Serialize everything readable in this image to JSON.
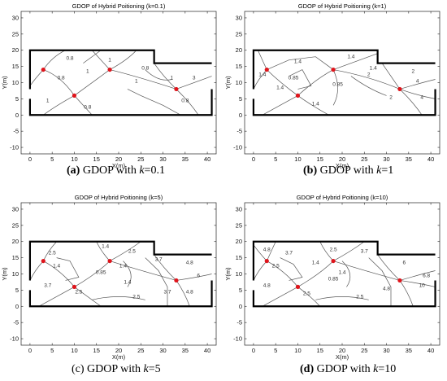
{
  "chart_data": [
    {
      "type": "contour",
      "title": "GDOP of Hybrid Poitioning (k=0.1)",
      "xlabel": "X(m)",
      "ylabel": "Y(m)",
      "xlim": [
        -2,
        42
      ],
      "ylim": [
        -12,
        32
      ],
      "xticks": [
        0,
        5,
        10,
        15,
        20,
        25,
        30,
        35,
        40
      ],
      "yticks": [
        -10,
        -5,
        0,
        5,
        10,
        15,
        20,
        25,
        30
      ],
      "room_outline": [
        [
          0,
          8
        ],
        [
          0,
          20
        ],
        [
          28,
          20
        ],
        [
          28,
          16
        ],
        [
          41,
          16
        ]
      ],
      "room_outline_2": [
        [
          41,
          8
        ],
        [
          41,
          0
        ],
        [
          0,
          0
        ],
        [
          0,
          5
        ]
      ],
      "anchors": [
        [
          3,
          14
        ],
        [
          10,
          6
        ],
        [
          18,
          14
        ],
        [
          33,
          8
        ]
      ],
      "contour_labels": [
        {
          "x": 9,
          "y": 17,
          "text": "0.8"
        },
        {
          "x": 26,
          "y": 14,
          "text": "0.8"
        },
        {
          "x": 7,
          "y": 11,
          "text": "0.8"
        },
        {
          "x": 13,
          "y": 2,
          "text": "0.8"
        },
        {
          "x": 35,
          "y": 4,
          "text": "0.8"
        },
        {
          "x": 13,
          "y": 13,
          "text": "1"
        },
        {
          "x": 18,
          "y": 16.5,
          "text": "1"
        },
        {
          "x": 4,
          "y": 4,
          "text": "1"
        },
        {
          "x": 32,
          "y": 11,
          "text": "1"
        },
        {
          "x": 24,
          "y": 10,
          "text": "1"
        },
        {
          "x": 37,
          "y": 11,
          "text": "3"
        }
      ],
      "caption_letter": "(a)",
      "caption_text": " GDOP with ",
      "caption_k": "k",
      "caption_value": "=0.1"
    },
    {
      "type": "contour",
      "title": "GDOP of Hybrid Poitioning (k=1)",
      "xlabel": "X(m)",
      "ylabel": "Y(m)",
      "xlim": [
        -2,
        42
      ],
      "ylim": [
        -12,
        32
      ],
      "xticks": [
        0,
        5,
        10,
        15,
        20,
        25,
        30,
        35,
        40
      ],
      "yticks": [
        -10,
        -5,
        0,
        5,
        10,
        15,
        20,
        25,
        30
      ],
      "room_outline": [
        [
          0,
          8
        ],
        [
          0,
          20
        ],
        [
          28,
          20
        ],
        [
          28,
          16
        ],
        [
          41,
          16
        ]
      ],
      "room_outline_2": [
        [
          41,
          8
        ],
        [
          41,
          0
        ],
        [
          0,
          0
        ],
        [
          0,
          5
        ]
      ],
      "anchors": [
        [
          3,
          14
        ],
        [
          10,
          6
        ],
        [
          18,
          14
        ],
        [
          33,
          8
        ]
      ],
      "contour_labels": [
        {
          "x": 10,
          "y": 16,
          "text": "1.4"
        },
        {
          "x": 22,
          "y": 17.5,
          "text": "1.4"
        },
        {
          "x": 27,
          "y": 14,
          "text": "1.4"
        },
        {
          "x": 2,
          "y": 12,
          "text": "1.4"
        },
        {
          "x": 6,
          "y": 8,
          "text": "1.4"
        },
        {
          "x": 14,
          "y": 3,
          "text": "1.4"
        },
        {
          "x": 9,
          "y": 11,
          "text": "0.85"
        },
        {
          "x": 19,
          "y": 9,
          "text": "0.85"
        },
        {
          "x": 26,
          "y": 12,
          "text": "2"
        },
        {
          "x": 31,
          "y": 5,
          "text": "2"
        },
        {
          "x": 37,
          "y": 10,
          "text": "4"
        },
        {
          "x": 38,
          "y": 5,
          "text": "4"
        },
        {
          "x": 36,
          "y": 13,
          "text": "2"
        }
      ],
      "caption_letter": "(b)",
      "caption_text": " GDOP with ",
      "caption_k": "k",
      "caption_value": "=1"
    },
    {
      "type": "contour",
      "title": "GDOP of Hybrid Poitioning (k=5)",
      "xlabel": "X(m)",
      "ylabel": "Y(m)",
      "xlim": [
        -2,
        42
      ],
      "ylim": [
        -12,
        32
      ],
      "xticks": [
        0,
        5,
        10,
        15,
        20,
        25,
        30,
        35,
        40
      ],
      "yticks": [
        -10,
        -5,
        0,
        5,
        10,
        15,
        20,
        25,
        30
      ],
      "room_outline": [
        [
          0,
          8
        ],
        [
          0,
          20
        ],
        [
          28,
          20
        ],
        [
          28,
          16
        ],
        [
          41,
          16
        ]
      ],
      "room_outline_2": [
        [
          41,
          8
        ],
        [
          41,
          0
        ],
        [
          0,
          0
        ],
        [
          0,
          5
        ]
      ],
      "anchors": [
        [
          3,
          14
        ],
        [
          10,
          6
        ],
        [
          18,
          14
        ],
        [
          33,
          8
        ]
      ],
      "contour_labels": [
        {
          "x": 5,
          "y": 16,
          "text": "2.5"
        },
        {
          "x": 23,
          "y": 16.5,
          "text": "2.5"
        },
        {
          "x": 6,
          "y": 12,
          "text": "1.4"
        },
        {
          "x": 17,
          "y": 18,
          "text": "1.4"
        },
        {
          "x": 21,
          "y": 12,
          "text": "1.4"
        },
        {
          "x": 22,
          "y": 7,
          "text": "1.4"
        },
        {
          "x": 16,
          "y": 10,
          "text": "0.85"
        },
        {
          "x": 4,
          "y": 6,
          "text": "3.7"
        },
        {
          "x": 29,
          "y": 14,
          "text": "3.7"
        },
        {
          "x": 11,
          "y": 4,
          "text": "2.5"
        },
        {
          "x": 24,
          "y": 2.5,
          "text": "2.5"
        },
        {
          "x": 36,
          "y": 13,
          "text": "4.8"
        },
        {
          "x": 31,
          "y": 4,
          "text": "3.7"
        },
        {
          "x": 38,
          "y": 9,
          "text": "6"
        },
        {
          "x": 36,
          "y": 4,
          "text": "4.8"
        }
      ],
      "caption_letter": "(c)",
      "caption_text": " GDOP with ",
      "caption_k": "k",
      "caption_value": "=5"
    },
    {
      "type": "contour",
      "title": "GDOP of Hybrid Poitioning (k=10)",
      "xlabel": "X(m)",
      "ylabel": "Y(m)",
      "xlim": [
        -2,
        42
      ],
      "ylim": [
        -12,
        32
      ],
      "xticks": [
        0,
        5,
        10,
        15,
        20,
        25,
        30,
        35,
        40
      ],
      "yticks": [
        -10,
        -5,
        0,
        5,
        10,
        15,
        20,
        25,
        30
      ],
      "room_outline": [
        [
          0,
          8
        ],
        [
          0,
          20
        ],
        [
          28,
          20
        ],
        [
          28,
          16
        ],
        [
          41,
          16
        ]
      ],
      "room_outline_2": [
        [
          41,
          8
        ],
        [
          41,
          0
        ],
        [
          0,
          0
        ],
        [
          0,
          5
        ]
      ],
      "anchors": [
        [
          3,
          14
        ],
        [
          10,
          6
        ],
        [
          18,
          14
        ],
        [
          33,
          8
        ]
      ],
      "contour_labels": [
        {
          "x": 3,
          "y": 17,
          "text": "4.8"
        },
        {
          "x": 8,
          "y": 16,
          "text": "3.7"
        },
        {
          "x": 18,
          "y": 17,
          "text": "2.5"
        },
        {
          "x": 25,
          "y": 16.5,
          "text": "3.7"
        },
        {
          "x": 5,
          "y": 12,
          "text": "2.5"
        },
        {
          "x": 14,
          "y": 13,
          "text": "1.4"
        },
        {
          "x": 20,
          "y": 10,
          "text": "1.4"
        },
        {
          "x": 18,
          "y": 8,
          "text": "0.85"
        },
        {
          "x": 3,
          "y": 6,
          "text": "4.8"
        },
        {
          "x": 12,
          "y": 3.5,
          "text": "2.5"
        },
        {
          "x": 24,
          "y": 2.5,
          "text": "2.5"
        },
        {
          "x": 30,
          "y": 5,
          "text": "4.8"
        },
        {
          "x": 34,
          "y": 13,
          "text": "6"
        },
        {
          "x": 39,
          "y": 9,
          "text": "6.8"
        },
        {
          "x": 38,
          "y": 6,
          "text": "10"
        }
      ],
      "caption_letter": "(d)",
      "caption_text": " GDOP with ",
      "caption_k": "k",
      "caption_value": "=10"
    }
  ]
}
